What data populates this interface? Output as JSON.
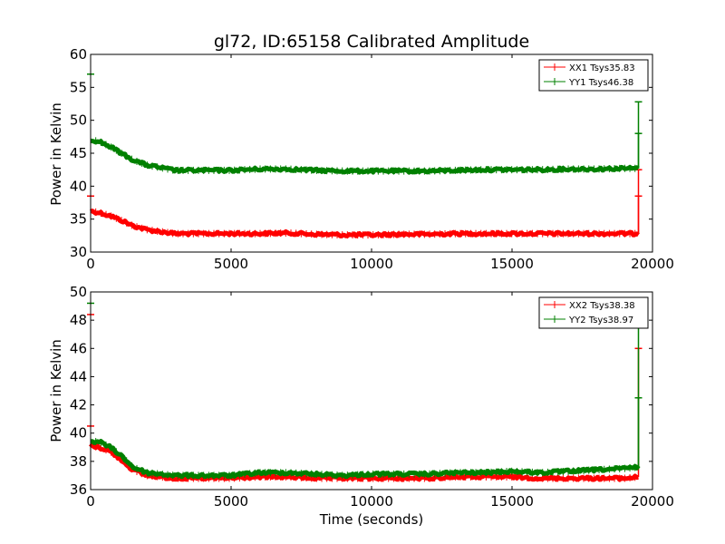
{
  "chart_data": [
    {
      "type": "line",
      "title": "gl72, ID:65158 Calibrated Amplitude",
      "xlabel": "",
      "ylabel": "Power in Kelvin",
      "xlim": [
        0,
        20000
      ],
      "ylim": [
        30,
        60
      ],
      "x_ticks": [
        "0",
        "5000",
        "10000",
        "15000",
        "20000"
      ],
      "y_ticks": [
        "30",
        "35",
        "40",
        "45",
        "50",
        "55",
        "60"
      ],
      "legend_position": "top-right",
      "grid": false,
      "series": [
        {
          "name": "XX1 Tsys35.83",
          "color": "#ff0000",
          "x": [
            0,
            300,
            700,
            1100,
            1500,
            2000,
            2500,
            3000,
            4000,
            5000,
            6000,
            7000,
            8000,
            9000,
            10000,
            11000,
            12000,
            13000,
            14000,
            15000,
            16000,
            17000,
            18000,
            19000,
            19500
          ],
          "y": [
            36.2,
            36.0,
            35.5,
            34.8,
            34.0,
            33.4,
            33.1,
            32.8,
            32.8,
            32.8,
            32.8,
            32.9,
            32.7,
            32.6,
            32.6,
            32.7,
            32.7,
            32.8,
            32.8,
            32.8,
            32.8,
            32.8,
            32.8,
            32.8,
            32.8
          ],
          "spikes": [
            [
              0,
              38.5
            ],
            [
              19500,
              42.5
            ],
            [
              19500,
              38.5
            ]
          ]
        },
        {
          "name": "YY1 Tsys46.38",
          "color": "#008000",
          "x": [
            0,
            300,
            700,
            1100,
            1500,
            2000,
            2500,
            3000,
            4000,
            5000,
            6000,
            7000,
            8000,
            9000,
            10000,
            11000,
            12000,
            13000,
            14000,
            15000,
            16000,
            17000,
            18000,
            19000,
            19500
          ],
          "y": [
            47.0,
            46.8,
            46.0,
            45.0,
            44.0,
            43.2,
            42.8,
            42.4,
            42.4,
            42.4,
            42.6,
            42.6,
            42.4,
            42.3,
            42.3,
            42.3,
            42.3,
            42.4,
            42.5,
            42.5,
            42.5,
            42.6,
            42.6,
            42.7,
            42.7
          ],
          "spikes": [
            [
              0,
              57.0
            ],
            [
              19500,
              52.8
            ],
            [
              19500,
              48.0
            ]
          ]
        }
      ]
    },
    {
      "type": "line",
      "title": "",
      "xlabel": "Time (seconds)",
      "ylabel": "Power in Kelvin",
      "xlim": [
        0,
        20000
      ],
      "ylim": [
        36,
        50
      ],
      "x_ticks": [
        "0",
        "5000",
        "10000",
        "15000",
        "20000"
      ],
      "y_ticks": [
        "36",
        "38",
        "40",
        "42",
        "44",
        "46",
        "48",
        "50"
      ],
      "legend_position": "top-right",
      "grid": false,
      "series": [
        {
          "name": "XX2 Tsys38.38",
          "color": "#ff0000",
          "x": [
            0,
            300,
            700,
            1100,
            1500,
            2000,
            2500,
            3000,
            4000,
            5000,
            6000,
            7000,
            8000,
            9000,
            10000,
            11000,
            12000,
            13000,
            14000,
            15000,
            16000,
            17000,
            18000,
            19000,
            19500
          ],
          "y": [
            39.1,
            39.0,
            38.7,
            38.1,
            37.4,
            37.0,
            36.9,
            36.8,
            36.8,
            36.8,
            36.9,
            36.9,
            36.8,
            36.8,
            36.8,
            36.8,
            36.8,
            36.9,
            36.9,
            36.9,
            36.8,
            36.8,
            36.8,
            36.8,
            36.9
          ],
          "spikes": [
            [
              0,
              48.4
            ],
            [
              0,
              40.5
            ],
            [
              19500,
              46.0
            ]
          ]
        },
        {
          "name": "YY2 Tsys38.97",
          "color": "#008000",
          "x": [
            0,
            300,
            700,
            1100,
            1500,
            2000,
            2500,
            3000,
            4000,
            5000,
            6000,
            7000,
            8000,
            9000,
            10000,
            11000,
            12000,
            13000,
            14000,
            15000,
            16000,
            17000,
            18000,
            19000,
            19500
          ],
          "y": [
            39.4,
            39.4,
            39.0,
            38.4,
            37.6,
            37.2,
            37.1,
            37.0,
            37.0,
            37.0,
            37.2,
            37.2,
            37.1,
            37.0,
            37.1,
            37.1,
            37.1,
            37.2,
            37.2,
            37.3,
            37.2,
            37.3,
            37.4,
            37.5,
            37.6
          ],
          "spikes": [
            [
              0,
              49.2
            ],
            [
              19500,
              47.5
            ],
            [
              19500,
              42.5
            ]
          ]
        }
      ]
    }
  ]
}
